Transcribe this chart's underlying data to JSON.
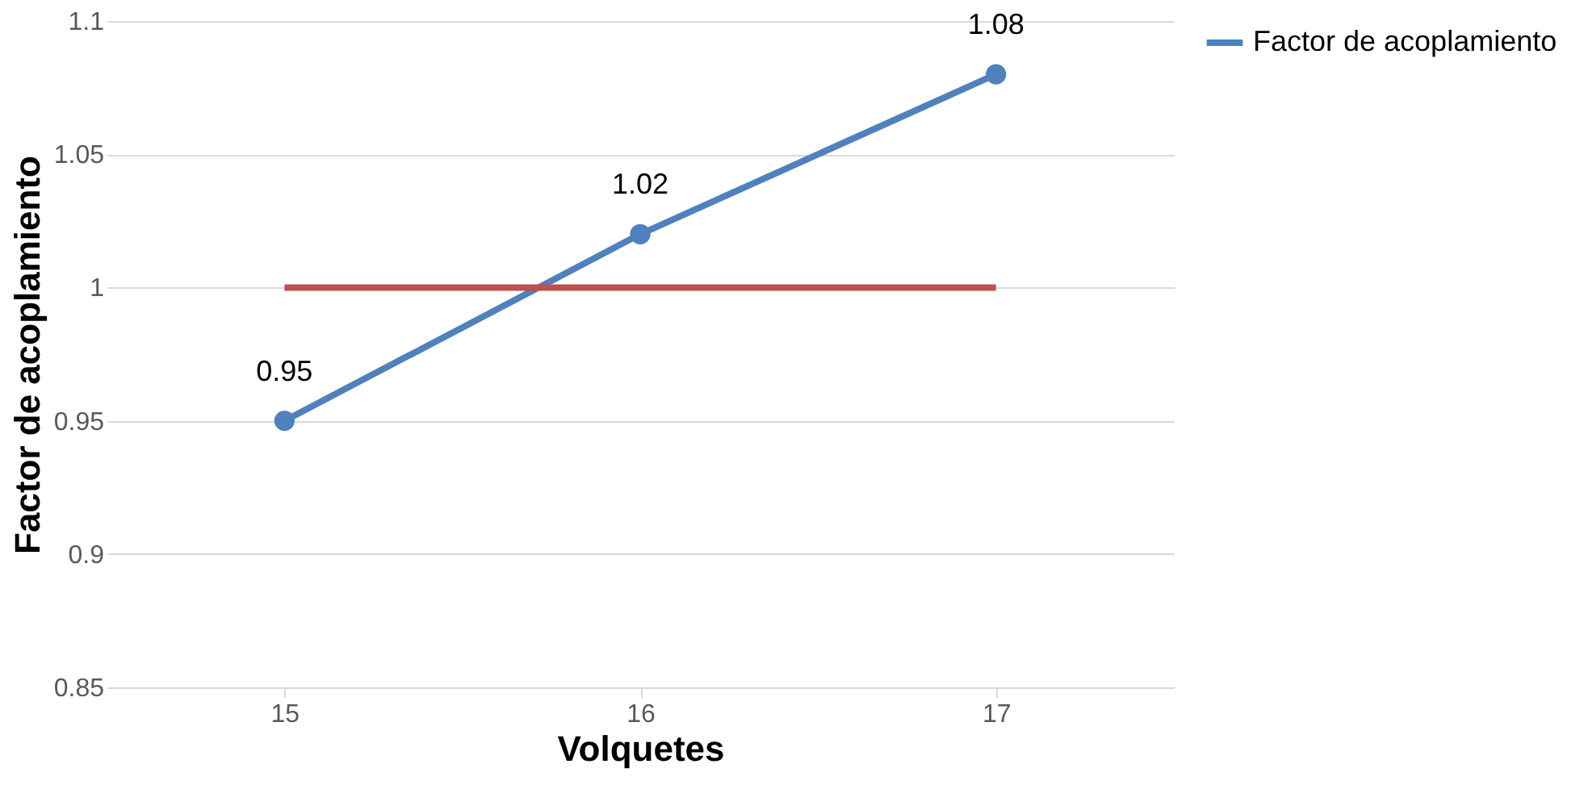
{
  "chart_data": {
    "type": "line",
    "xlabel": "Volquetes",
    "ylabel": "Factor de acoplamiento",
    "categories": [
      "15",
      "16",
      "17"
    ],
    "series": [
      {
        "name": "Factor de acoplamiento",
        "color": "#4f81bd",
        "values": [
          0.95,
          1.02,
          1.08
        ],
        "marker": "circle",
        "value_labels": [
          "0.95",
          "1.02",
          "1.08"
        ]
      },
      {
        "color": "#c0504d",
        "values": [
          1,
          1,
          1
        ],
        "marker": "none"
      }
    ],
    "ylim": [
      0.85,
      1.1
    ],
    "yticks": [
      0.85,
      0.9,
      0.95,
      1,
      1.05,
      1.1
    ],
    "grid": "y",
    "legend": "right"
  }
}
